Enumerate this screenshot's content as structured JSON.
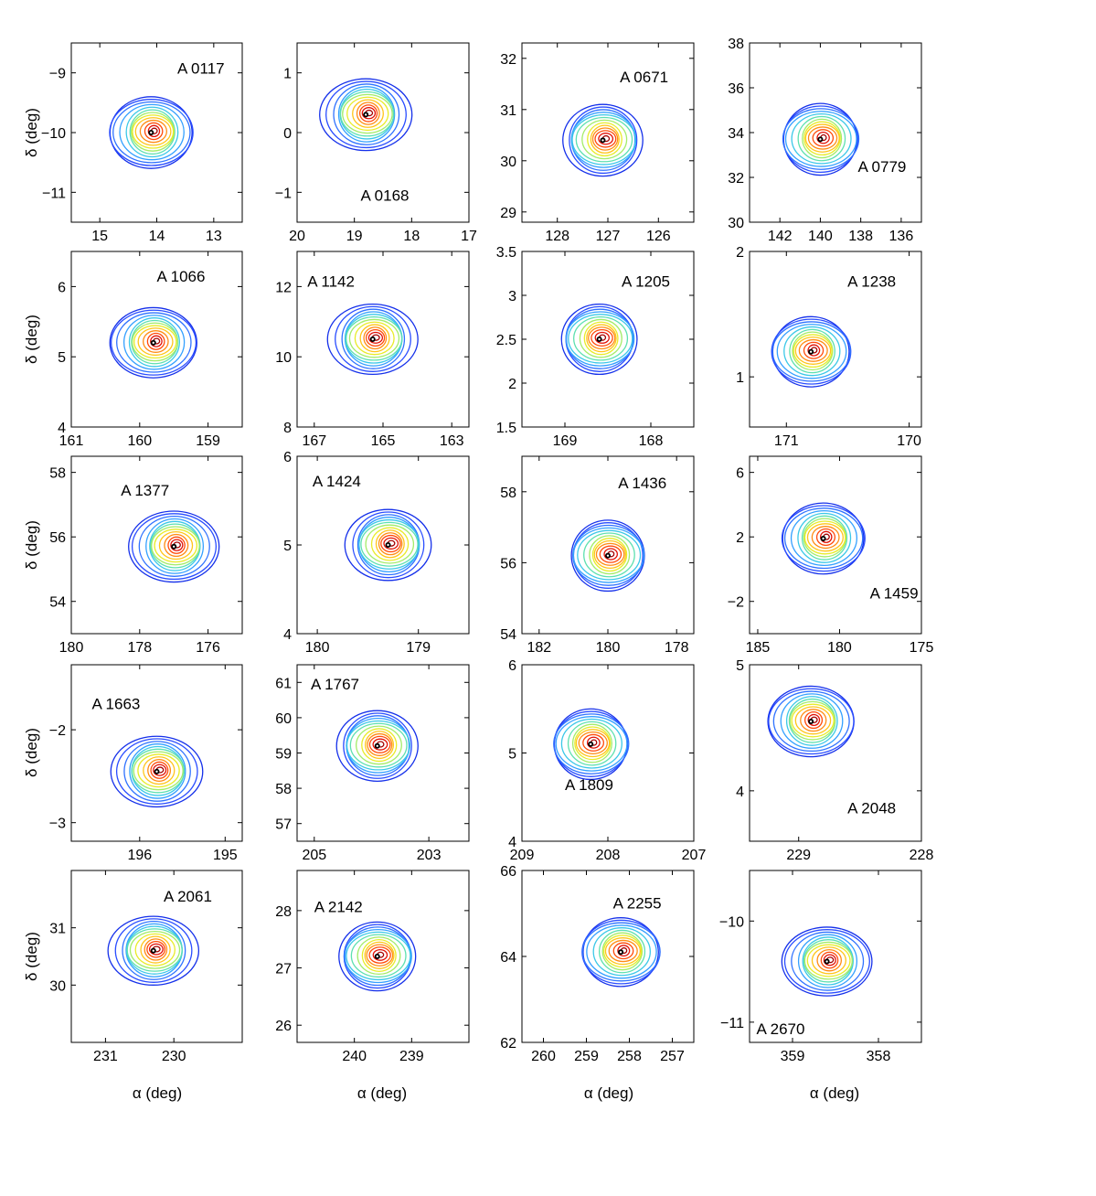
{
  "figure": {
    "xlabel": "α (deg)",
    "ylabel": "δ (deg)"
  },
  "chart_data": [
    {
      "type": "contour",
      "title": "A 0117",
      "xlim": [
        15.5,
        12.5
      ],
      "ylim": [
        -11.5,
        -8.5
      ],
      "xticks": [
        15,
        14,
        13
      ],
      "xtick_labels": [
        "15",
        "14",
        "13"
      ],
      "yticks": [
        -9,
        -10,
        -11
      ],
      "ytick_labels": [
        "−9",
        "−10",
        "−11"
      ],
      "peak": [
        14.1,
        -10.0
      ]
    },
    {
      "type": "contour",
      "title": "A 0168",
      "xlim": [
        20,
        17
      ],
      "ylim": [
        -1.5,
        1.5
      ],
      "xticks": [
        20,
        19,
        18,
        17
      ],
      "xtick_labels": [
        "20",
        "19",
        "18",
        "17"
      ],
      "yticks": [
        1,
        0,
        -1
      ],
      "ytick_labels": [
        "1",
        "0",
        "−1"
      ],
      "peak": [
        18.8,
        0.3
      ]
    },
    {
      "type": "contour",
      "title": "A 0671",
      "xlim": [
        128.7,
        125.3
      ],
      "ylim": [
        28.8,
        32.3
      ],
      "xticks": [
        128,
        127,
        126
      ],
      "xtick_labels": [
        "128",
        "127",
        "126"
      ],
      "yticks": [
        32,
        31,
        30,
        29
      ],
      "ytick_labels": [
        "32",
        "31",
        "30",
        "29"
      ],
      "peak": [
        127.1,
        30.4
      ]
    },
    {
      "type": "contour",
      "title": "A 0779",
      "xlim": [
        143.5,
        135
      ],
      "ylim": [
        30,
        38
      ],
      "xticks": [
        142,
        140,
        138,
        136
      ],
      "xtick_labels": [
        "142",
        "140",
        "138",
        "136"
      ],
      "yticks": [
        38,
        36,
        34,
        32,
        30
      ],
      "ytick_labels": [
        "38",
        "36",
        "34",
        "32",
        "30"
      ],
      "peak": [
        140,
        33.7
      ]
    },
    {
      "type": "contour",
      "title": "A 1066",
      "xlim": [
        161,
        158.5
      ],
      "ylim": [
        4,
        6.5
      ],
      "xticks": [
        161,
        160,
        159
      ],
      "xtick_labels": [
        "161",
        "160",
        "159"
      ],
      "yticks": [
        6,
        5,
        4
      ],
      "ytick_labels": [
        "6",
        "5",
        "4"
      ],
      "peak": [
        159.8,
        5.2
      ]
    },
    {
      "type": "contour",
      "title": "A 1142",
      "xlim": [
        167.5,
        162.5
      ],
      "ylim": [
        8,
        13
      ],
      "xticks": [
        167,
        165,
        163
      ],
      "xtick_labels": [
        "167",
        "165",
        "163"
      ],
      "yticks": [
        12,
        10,
        8
      ],
      "ytick_labels": [
        "12",
        "10",
        "8"
      ],
      "peak": [
        165.3,
        10.5
      ]
    },
    {
      "type": "contour",
      "title": "A 1205",
      "xlim": [
        169.5,
        167.5
      ],
      "ylim": [
        1.5,
        3.5
      ],
      "xticks": [
        169,
        168
      ],
      "xtick_labels": [
        "169",
        "168"
      ],
      "yticks": [
        3.5,
        3,
        2.5,
        2,
        1.5
      ],
      "ytick_labels": [
        "3.5",
        "3",
        "2.5",
        "2",
        "1.5"
      ],
      "peak": [
        168.6,
        2.5
      ]
    },
    {
      "type": "contour",
      "title": "A 1238",
      "xlim": [
        171.3,
        169.9
      ],
      "ylim": [
        0.6,
        2
      ],
      "xticks": [
        171,
        170
      ],
      "xtick_labels": [
        "171",
        "170"
      ],
      "yticks": [
        2,
        1
      ],
      "ytick_labels": [
        "2",
        "1"
      ],
      "peak": [
        170.8,
        1.2
      ]
    },
    {
      "type": "contour",
      "title": "A 1377",
      "xlim": [
        180,
        175
      ],
      "ylim": [
        53,
        58.5
      ],
      "xticks": [
        180,
        178,
        176
      ],
      "xtick_labels": [
        "180",
        "178",
        "176"
      ],
      "yticks": [
        58,
        56,
        54
      ],
      "ytick_labels": [
        "58",
        "56",
        "54"
      ],
      "peak": [
        177,
        55.7
      ]
    },
    {
      "type": "contour",
      "title": "A 1424",
      "xlim": [
        180.2,
        178.5
      ],
      "ylim": [
        4,
        6
      ],
      "xticks": [
        180,
        179
      ],
      "xtick_labels": [
        "180",
        "179"
      ],
      "yticks": [
        6,
        5,
        4
      ],
      "ytick_labels": [
        "6",
        "5",
        "4"
      ],
      "peak": [
        179.3,
        5.0
      ]
    },
    {
      "type": "contour",
      "title": "A 1436",
      "xlim": [
        182.5,
        177.5
      ],
      "ylim": [
        54,
        59
      ],
      "xticks": [
        182,
        180,
        178
      ],
      "xtick_labels": [
        "182",
        "180",
        "178"
      ],
      "yticks": [
        58,
        56,
        54
      ],
      "ytick_labels": [
        "58",
        "56",
        "54"
      ],
      "peak": [
        180,
        56.2
      ]
    },
    {
      "type": "contour",
      "title": "A 1459",
      "xlim": [
        185.5,
        175
      ],
      "ylim": [
        -4,
        7
      ],
      "xticks": [
        185,
        180,
        175
      ],
      "xtick_labels": [
        "185",
        "180",
        "175"
      ],
      "yticks": [
        6,
        2,
        -2
      ],
      "ytick_labels": [
        "6",
        "2",
        "−2"
      ],
      "peak": [
        181,
        1.9
      ]
    },
    {
      "type": "contour",
      "title": "A 1663",
      "xlim": [
        196.8,
        194.8
      ],
      "ylim": [
        -3.2,
        -1.3
      ],
      "xticks": [
        196,
        195
      ],
      "xtick_labels": [
        "196",
        "195"
      ],
      "yticks": [
        -2,
        -3
      ],
      "ytick_labels": [
        "−2",
        "−3"
      ],
      "peak": [
        195.8,
        -2.45
      ]
    },
    {
      "type": "contour",
      "title": "A 1767",
      "xlim": [
        205.3,
        202.3
      ],
      "ylim": [
        56.5,
        61.5
      ],
      "xticks": [
        205,
        203
      ],
      "xtick_labels": [
        "205",
        "203"
      ],
      "yticks": [
        61,
        60,
        59,
        58,
        57
      ],
      "ytick_labels": [
        "61",
        "60",
        "59",
        "58",
        "57"
      ],
      "peak": [
        203.9,
        59.2
      ]
    },
    {
      "type": "contour",
      "title": "A 1809",
      "xlim": [
        209,
        207
      ],
      "ylim": [
        4,
        6
      ],
      "xticks": [
        209,
        208,
        207
      ],
      "xtick_labels": [
        "209",
        "208",
        "207"
      ],
      "yticks": [
        6,
        5,
        4
      ],
      "ytick_labels": [
        "6",
        "5",
        "4"
      ],
      "peak": [
        208.2,
        5.1
      ]
    },
    {
      "type": "contour",
      "title": "A 2048",
      "xlim": [
        229.4,
        228
      ],
      "ylim": [
        3.6,
        5
      ],
      "xticks": [
        229,
        228
      ],
      "xtick_labels": [
        "229",
        "228"
      ],
      "yticks": [
        5,
        4
      ],
      "ytick_labels": [
        "5",
        "4"
      ],
      "peak": [
        228.9,
        4.55
      ]
    },
    {
      "type": "contour",
      "title": "A 2061",
      "xlim": [
        231.5,
        229
      ],
      "ylim": [
        29,
        32
      ],
      "xticks": [
        231,
        230
      ],
      "xtick_labels": [
        "231",
        "230"
      ],
      "yticks": [
        31,
        30
      ],
      "ytick_labels": [
        "31",
        "30"
      ],
      "peak": [
        230.3,
        30.6
      ]
    },
    {
      "type": "contour",
      "title": "A 2142",
      "xlim": [
        241,
        238
      ],
      "ylim": [
        25.7,
        28.7
      ],
      "xticks": [
        240,
        239
      ],
      "xtick_labels": [
        "240",
        "239"
      ],
      "yticks": [
        28,
        27,
        26
      ],
      "ytick_labels": [
        "28",
        "27",
        "26"
      ],
      "peak": [
        239.6,
        27.2
      ]
    },
    {
      "type": "contour",
      "title": "A 2255",
      "xlim": [
        260.5,
        256.5
      ],
      "ylim": [
        62,
        66
      ],
      "xticks": [
        260,
        259,
        258,
        257
      ],
      "xtick_labels": [
        "260",
        "259",
        "258",
        "257"
      ],
      "yticks": [
        66,
        64,
        62
      ],
      "ytick_labels": [
        "66",
        "64",
        "62"
      ],
      "peak": [
        258.2,
        64.1
      ]
    },
    {
      "type": "contour",
      "title": "A 2670",
      "xlim": [
        359.5,
        357.5
      ],
      "ylim": [
        -11.2,
        -9.5
      ],
      "xticks": [
        359,
        358
      ],
      "xtick_labels": [
        "359",
        "358"
      ],
      "yticks": [
        -10,
        -11
      ],
      "ytick_labels": [
        "−10",
        "−11"
      ],
      "peak": [
        358.6,
        -10.4
      ]
    }
  ]
}
